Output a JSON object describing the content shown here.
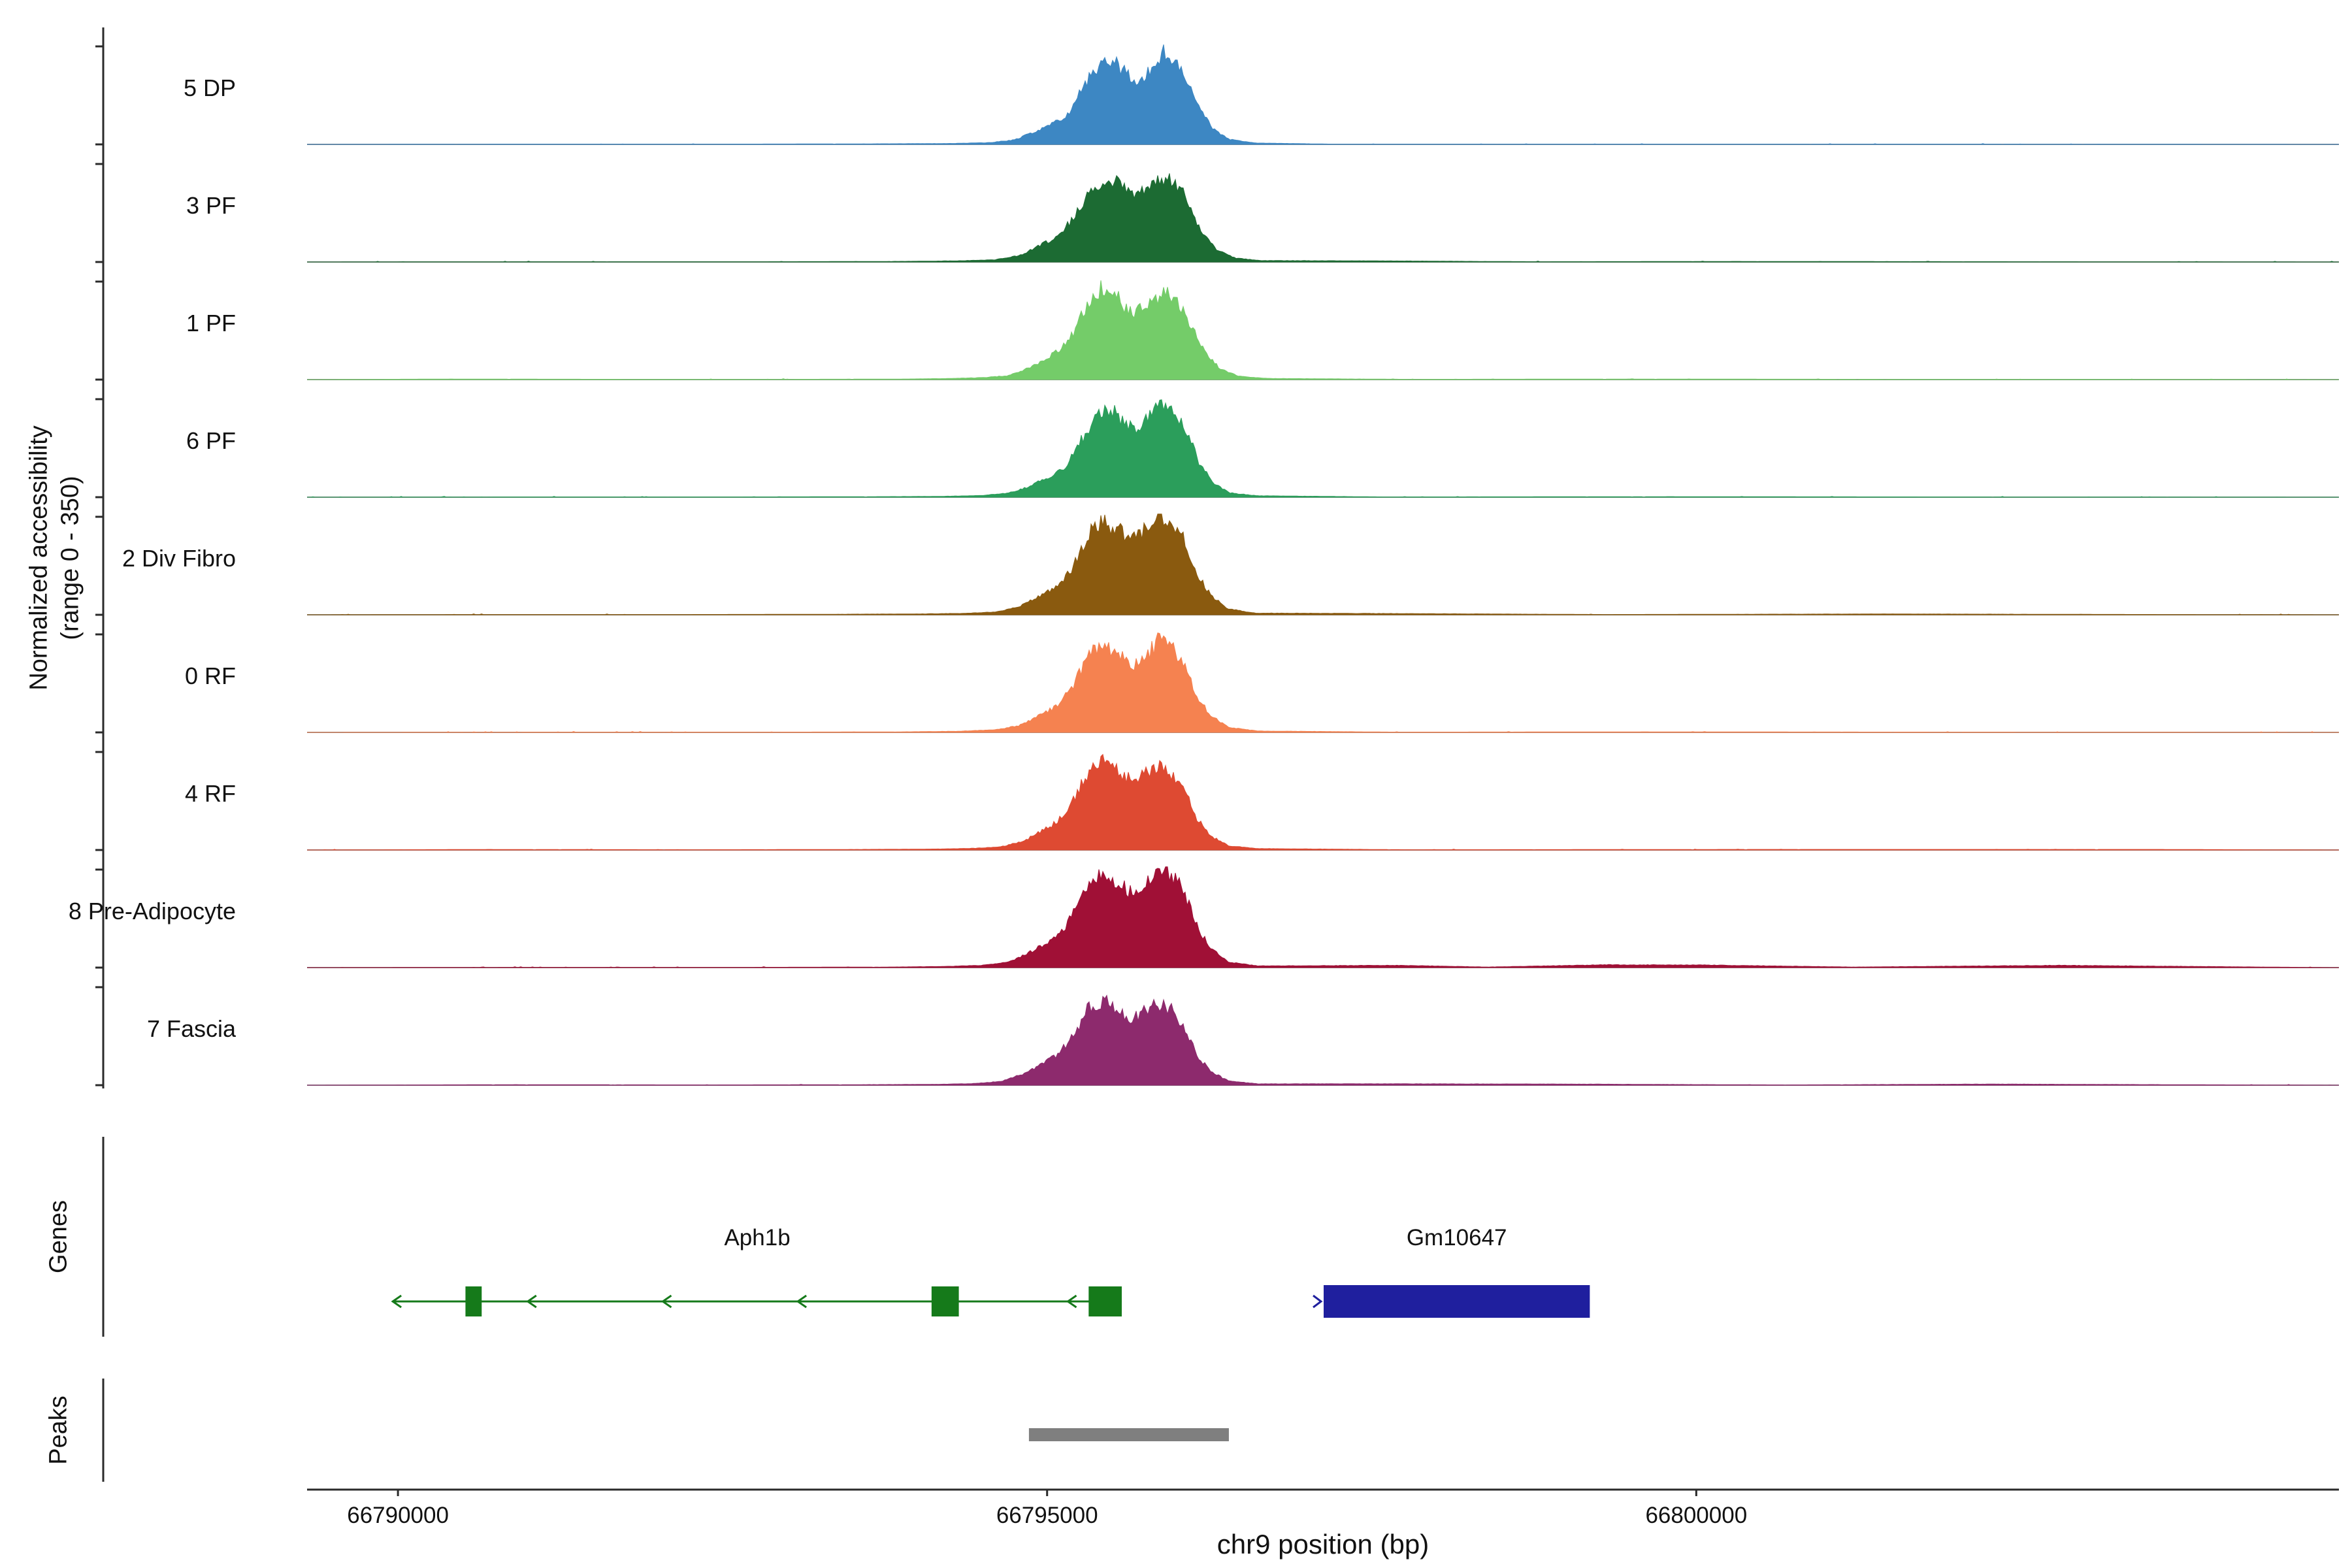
{
  "figure": {
    "y_axis_label": {
      "line1": "Normalized accessibility",
      "line2": "(range 0 - 350)"
    },
    "x_axis": {
      "title": "chr9 position (bp)",
      "ticks": [
        {
          "bp": 66790000,
          "label": "66790000"
        },
        {
          "bp": 66795000,
          "label": "66795000"
        },
        {
          "bp": 66800000,
          "label": "66800000"
        }
      ]
    },
    "section_labels": {
      "genes": "Genes",
      "peaks": "Peaks"
    }
  },
  "chart_data": {
    "type": "area",
    "title": "",
    "xlabel": "chr9 position (bp)",
    "ylabel": "Normalized accessibility (range 0 - 350)",
    "x_range_bp": [
      66789300,
      66804950
    ],
    "value_range": [
      0,
      350
    ],
    "tracks": [
      {
        "name": "5 DP",
        "color": "#3d87c3",
        "profile": [
          [
            66789350,
            0
          ],
          [
            66791000,
            1
          ],
          [
            66792500,
            1
          ],
          [
            66793600,
            2
          ],
          [
            66794200,
            3
          ],
          [
            66794550,
            6
          ],
          [
            66794750,
            16
          ],
          [
            66794900,
            45
          ],
          [
            66795050,
            75
          ],
          [
            66795150,
            100
          ],
          [
            66795280,
            210
          ],
          [
            66795400,
            285
          ],
          [
            66795500,
            300
          ],
          [
            66795600,
            258
          ],
          [
            66795700,
            228
          ],
          [
            66795800,
            268
          ],
          [
            66795900,
            330
          ],
          [
            66795990,
            310
          ],
          [
            66796080,
            235
          ],
          [
            66796180,
            120
          ],
          [
            66796280,
            55
          ],
          [
            66796400,
            18
          ],
          [
            66796600,
            5
          ],
          [
            66797200,
            1
          ],
          [
            66798500,
            1
          ],
          [
            66800000,
            1
          ],
          [
            66802000,
            1
          ],
          [
            66804900,
            0
          ]
        ]
      },
      {
        "name": "3 PF",
        "color": "#1c6b33",
        "profile": [
          [
            66789350,
            0
          ],
          [
            66791200,
            1
          ],
          [
            66792800,
            1
          ],
          [
            66793800,
            2
          ],
          [
            66794300,
            4
          ],
          [
            66794600,
            8
          ],
          [
            66794800,
            25
          ],
          [
            66794950,
            60
          ],
          [
            66795100,
            95
          ],
          [
            66795250,
            190
          ],
          [
            66795380,
            280
          ],
          [
            66795480,
            305
          ],
          [
            66795580,
            265
          ],
          [
            66795690,
            235
          ],
          [
            66795790,
            270
          ],
          [
            66795890,
            300
          ],
          [
            66795980,
            285
          ],
          [
            66796080,
            225
          ],
          [
            66796180,
            110
          ],
          [
            66796300,
            45
          ],
          [
            66796450,
            14
          ],
          [
            66796650,
            5
          ],
          [
            66797500,
            4
          ],
          [
            66798800,
            1
          ],
          [
            66800300,
            2
          ],
          [
            66802500,
            1
          ],
          [
            66804900,
            0
          ]
        ]
      },
      {
        "name": "1 PF",
        "color": "#74cc69",
        "profile": [
          [
            66789350,
            0
          ],
          [
            66790400,
            2
          ],
          [
            66791800,
            1
          ],
          [
            66793000,
            1
          ],
          [
            66793900,
            2
          ],
          [
            66794250,
            4
          ],
          [
            66794500,
            7
          ],
          [
            66794700,
            14
          ],
          [
            66794850,
            40
          ],
          [
            66794980,
            70
          ],
          [
            66795100,
            110
          ],
          [
            66795220,
            180
          ],
          [
            66795330,
            290
          ],
          [
            66795430,
            330
          ],
          [
            66795530,
            300
          ],
          [
            66795640,
            240
          ],
          [
            66795740,
            255
          ],
          [
            66795840,
            295
          ],
          [
            66795930,
            305
          ],
          [
            66796020,
            270
          ],
          [
            66796120,
            190
          ],
          [
            66796220,
            95
          ],
          [
            66796330,
            40
          ],
          [
            66796480,
            12
          ],
          [
            66796700,
            4
          ],
          [
            66797800,
            1
          ],
          [
            66799500,
            2
          ],
          [
            66801500,
            1
          ],
          [
            66803000,
            1
          ],
          [
            66804900,
            0
          ]
        ]
      },
      {
        "name": "6 PF",
        "color": "#2b9e5b",
        "profile": [
          [
            66789350,
            0
          ],
          [
            66791000,
            1
          ],
          [
            66792600,
            1
          ],
          [
            66793700,
            2
          ],
          [
            66794200,
            3
          ],
          [
            66794500,
            6
          ],
          [
            66794700,
            15
          ],
          [
            66794850,
            35
          ],
          [
            66795000,
            70
          ],
          [
            66795130,
            105
          ],
          [
            66795260,
            200
          ],
          [
            66795380,
            300
          ],
          [
            66795470,
            320
          ],
          [
            66795570,
            280
          ],
          [
            66795680,
            240
          ],
          [
            66795780,
            280
          ],
          [
            66795880,
            335
          ],
          [
            66795970,
            315
          ],
          [
            66796070,
            245
          ],
          [
            66796170,
            125
          ],
          [
            66796270,
            55
          ],
          [
            66796400,
            16
          ],
          [
            66796620,
            5
          ],
          [
            66797600,
            1
          ],
          [
            66799800,
            2
          ],
          [
            66801800,
            1
          ],
          [
            66804900,
            0
          ]
        ]
      },
      {
        "name": "2 Div Fibro",
        "color": "#8a5a0f",
        "profile": [
          [
            66789350,
            0
          ],
          [
            66790600,
            1
          ],
          [
            66792200,
            1
          ],
          [
            66793400,
            2
          ],
          [
            66794000,
            3
          ],
          [
            66794350,
            5
          ],
          [
            66794600,
            10
          ],
          [
            66794780,
            28
          ],
          [
            66794930,
            65
          ],
          [
            66795080,
            100
          ],
          [
            66795200,
            170
          ],
          [
            66795320,
            290
          ],
          [
            66795430,
            330
          ],
          [
            66795540,
            310
          ],
          [
            66795650,
            265
          ],
          [
            66795750,
            300
          ],
          [
            66795850,
            345
          ],
          [
            66795950,
            330
          ],
          [
            66796050,
            270
          ],
          [
            66796150,
            150
          ],
          [
            66796260,
            70
          ],
          [
            66796390,
            22
          ],
          [
            66796600,
            6
          ],
          [
            66797900,
            4
          ],
          [
            66799300,
            1
          ],
          [
            66801470,
            3
          ],
          [
            66803600,
            1
          ],
          [
            66804900,
            0
          ]
        ]
      },
      {
        "name": "0 RF",
        "color": "#f58250",
        "profile": [
          [
            66789350,
            0
          ],
          [
            66791300,
            1
          ],
          [
            66792900,
            1
          ],
          [
            66793900,
            2
          ],
          [
            66794300,
            4
          ],
          [
            66794600,
            9
          ],
          [
            66794780,
            24
          ],
          [
            66794930,
            58
          ],
          [
            66795080,
            95
          ],
          [
            66795210,
            175
          ],
          [
            66795330,
            280
          ],
          [
            66795440,
            310
          ],
          [
            66795550,
            275
          ],
          [
            66795660,
            235
          ],
          [
            66795760,
            270
          ],
          [
            66795860,
            330
          ],
          [
            66795950,
            310
          ],
          [
            66796050,
            250
          ],
          [
            66796150,
            130
          ],
          [
            66796260,
            60
          ],
          [
            66796400,
            18
          ],
          [
            66796620,
            5
          ],
          [
            66797700,
            1
          ],
          [
            66799600,
            2
          ],
          [
            66801900,
            1
          ],
          [
            66804900,
            0
          ]
        ]
      },
      {
        "name": "4 RF",
        "color": "#de4a32",
        "profile": [
          [
            66789350,
            0
          ],
          [
            66790700,
            2
          ],
          [
            66792300,
            1
          ],
          [
            66793500,
            2
          ],
          [
            66794100,
            3
          ],
          [
            66794450,
            6
          ],
          [
            66794650,
            12
          ],
          [
            66794820,
            32
          ],
          [
            66794960,
            68
          ],
          [
            66795090,
            105
          ],
          [
            66795220,
            195
          ],
          [
            66795340,
            295
          ],
          [
            66795440,
            320
          ],
          [
            66795550,
            285
          ],
          [
            66795660,
            245
          ],
          [
            66795760,
            270
          ],
          [
            66795860,
            295
          ],
          [
            66795950,
            280
          ],
          [
            66796050,
            225
          ],
          [
            66796150,
            115
          ],
          [
            66796260,
            50
          ],
          [
            66796400,
            15
          ],
          [
            66796620,
            5
          ],
          [
            66797800,
            1
          ],
          [
            66800200,
            2
          ],
          [
            66803590,
            2
          ],
          [
            66804900,
            0
          ]
        ]
      },
      {
        "name": "8 Pre-Adipocyte",
        "color": "#a01036",
        "profile": [
          [
            66789350,
            0
          ],
          [
            66791100,
            1
          ],
          [
            66792700,
            1
          ],
          [
            66793800,
            2
          ],
          [
            66794200,
            4
          ],
          [
            66794500,
            8
          ],
          [
            66794700,
            20
          ],
          [
            66794850,
            50
          ],
          [
            66795000,
            90
          ],
          [
            66795130,
            140
          ],
          [
            66795250,
            240
          ],
          [
            66795360,
            320
          ],
          [
            66795460,
            335
          ],
          [
            66795560,
            305
          ],
          [
            66795670,
            260
          ],
          [
            66795770,
            300
          ],
          [
            66795870,
            350
          ],
          [
            66795960,
            330
          ],
          [
            66796060,
            265
          ],
          [
            66796160,
            140
          ],
          [
            66796270,
            65
          ],
          [
            66796400,
            20
          ],
          [
            66796620,
            6
          ],
          [
            66797700,
            8
          ],
          [
            66798400,
            2
          ],
          [
            66799300,
            10
          ],
          [
            66800100,
            9
          ],
          [
            66801200,
            2
          ],
          [
            66802800,
            8
          ],
          [
            66804900,
            0
          ]
        ]
      },
      {
        "name": "7 Fascia",
        "color": "#8d2a6d",
        "profile": [
          [
            66789350,
            0
          ],
          [
            66790900,
            2
          ],
          [
            66792400,
            1
          ],
          [
            66793600,
            2
          ],
          [
            66794150,
            3
          ],
          [
            66794450,
            6
          ],
          [
            66794650,
            14
          ],
          [
            66794800,
            38
          ],
          [
            66794950,
            72
          ],
          [
            66795080,
            108
          ],
          [
            66795210,
            185
          ],
          [
            66795330,
            285
          ],
          [
            66795430,
            305
          ],
          [
            66795540,
            275
          ],
          [
            66795650,
            240
          ],
          [
            66795750,
            265
          ],
          [
            66795850,
            290
          ],
          [
            66795950,
            272
          ],
          [
            66796050,
            215
          ],
          [
            66796150,
            110
          ],
          [
            66796260,
            48
          ],
          [
            66796400,
            15
          ],
          [
            66796620,
            5
          ],
          [
            66797500,
            5
          ],
          [
            66799000,
            4
          ],
          [
            66800700,
            1
          ],
          [
            66802300,
            4
          ],
          [
            66804900,
            0
          ]
        ]
      }
    ],
    "genes": [
      {
        "name": "Aph1b",
        "strand": "-",
        "color": "#157a1a",
        "start": 66789960,
        "end": 66795575,
        "exons": [
          [
            66790520,
            66790645
          ],
          [
            66794110,
            66794320
          ],
          [
            66795320,
            66795575
          ]
        ]
      },
      {
        "name": "Gm10647",
        "strand": "+",
        "color": "#1f1f9e",
        "start": 66797130,
        "end": 66799180,
        "exons": [
          [
            66797130,
            66799180
          ]
        ]
      }
    ],
    "peaks": [
      {
        "start": 66794860,
        "end": 66796400,
        "color": "#7f7f7f"
      }
    ]
  }
}
